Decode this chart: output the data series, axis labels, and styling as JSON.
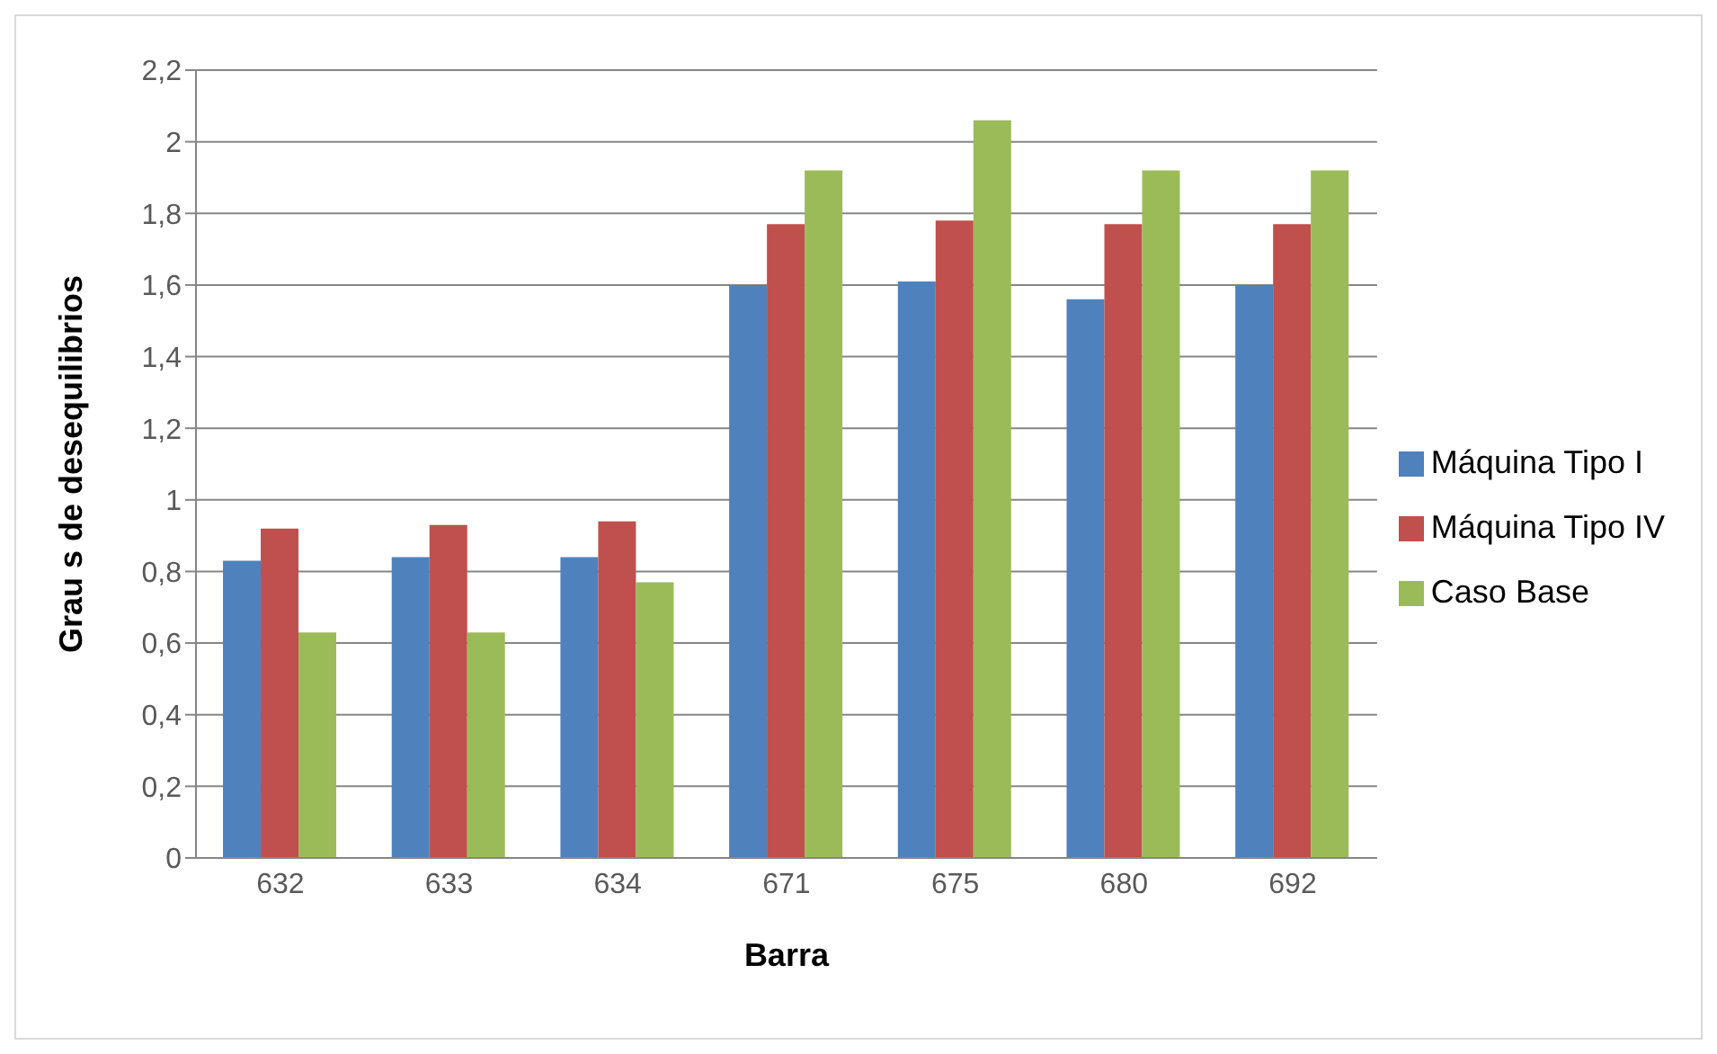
{
  "chart_data": {
    "type": "bar",
    "xlabel": "Barra",
    "ylabel": "Grau s de desequilibrios",
    "categories": [
      "632",
      "633",
      "634",
      "671",
      "675",
      "680",
      "692"
    ],
    "series": [
      {
        "name": "Máquina Tipo I",
        "color": "#4f81bd",
        "values": [
          0.83,
          0.84,
          0.84,
          1.6,
          1.61,
          1.56,
          1.6
        ]
      },
      {
        "name": "Máquina Tipo IV",
        "color": "#c0504d",
        "values": [
          0.92,
          0.93,
          0.94,
          1.77,
          1.78,
          1.77,
          1.77
        ]
      },
      {
        "name": "Caso Base",
        "color": "#9bbb59",
        "values": [
          0.63,
          0.63,
          0.77,
          1.92,
          2.06,
          1.92,
          1.92
        ]
      }
    ],
    "ylim": [
      0,
      2.2
    ],
    "yticks": [
      0,
      {
        "value": 0.2,
        "label": "0,2"
      },
      {
        "value": 0.4,
        "label": "0,4"
      },
      {
        "value": 0.6,
        "label": "0,6"
      },
      {
        "value": 0.8,
        "label": "0,8"
      },
      1,
      {
        "value": 1.2,
        "label": "1,2"
      },
      {
        "value": 1.4,
        "label": "1,4"
      },
      {
        "value": 1.6,
        "label": "1,6"
      },
      {
        "value": 1.8,
        "label": "1,8"
      },
      2,
      {
        "value": 2.2,
        "label": "2,2"
      }
    ],
    "grid": "y",
    "legend": "right"
  }
}
